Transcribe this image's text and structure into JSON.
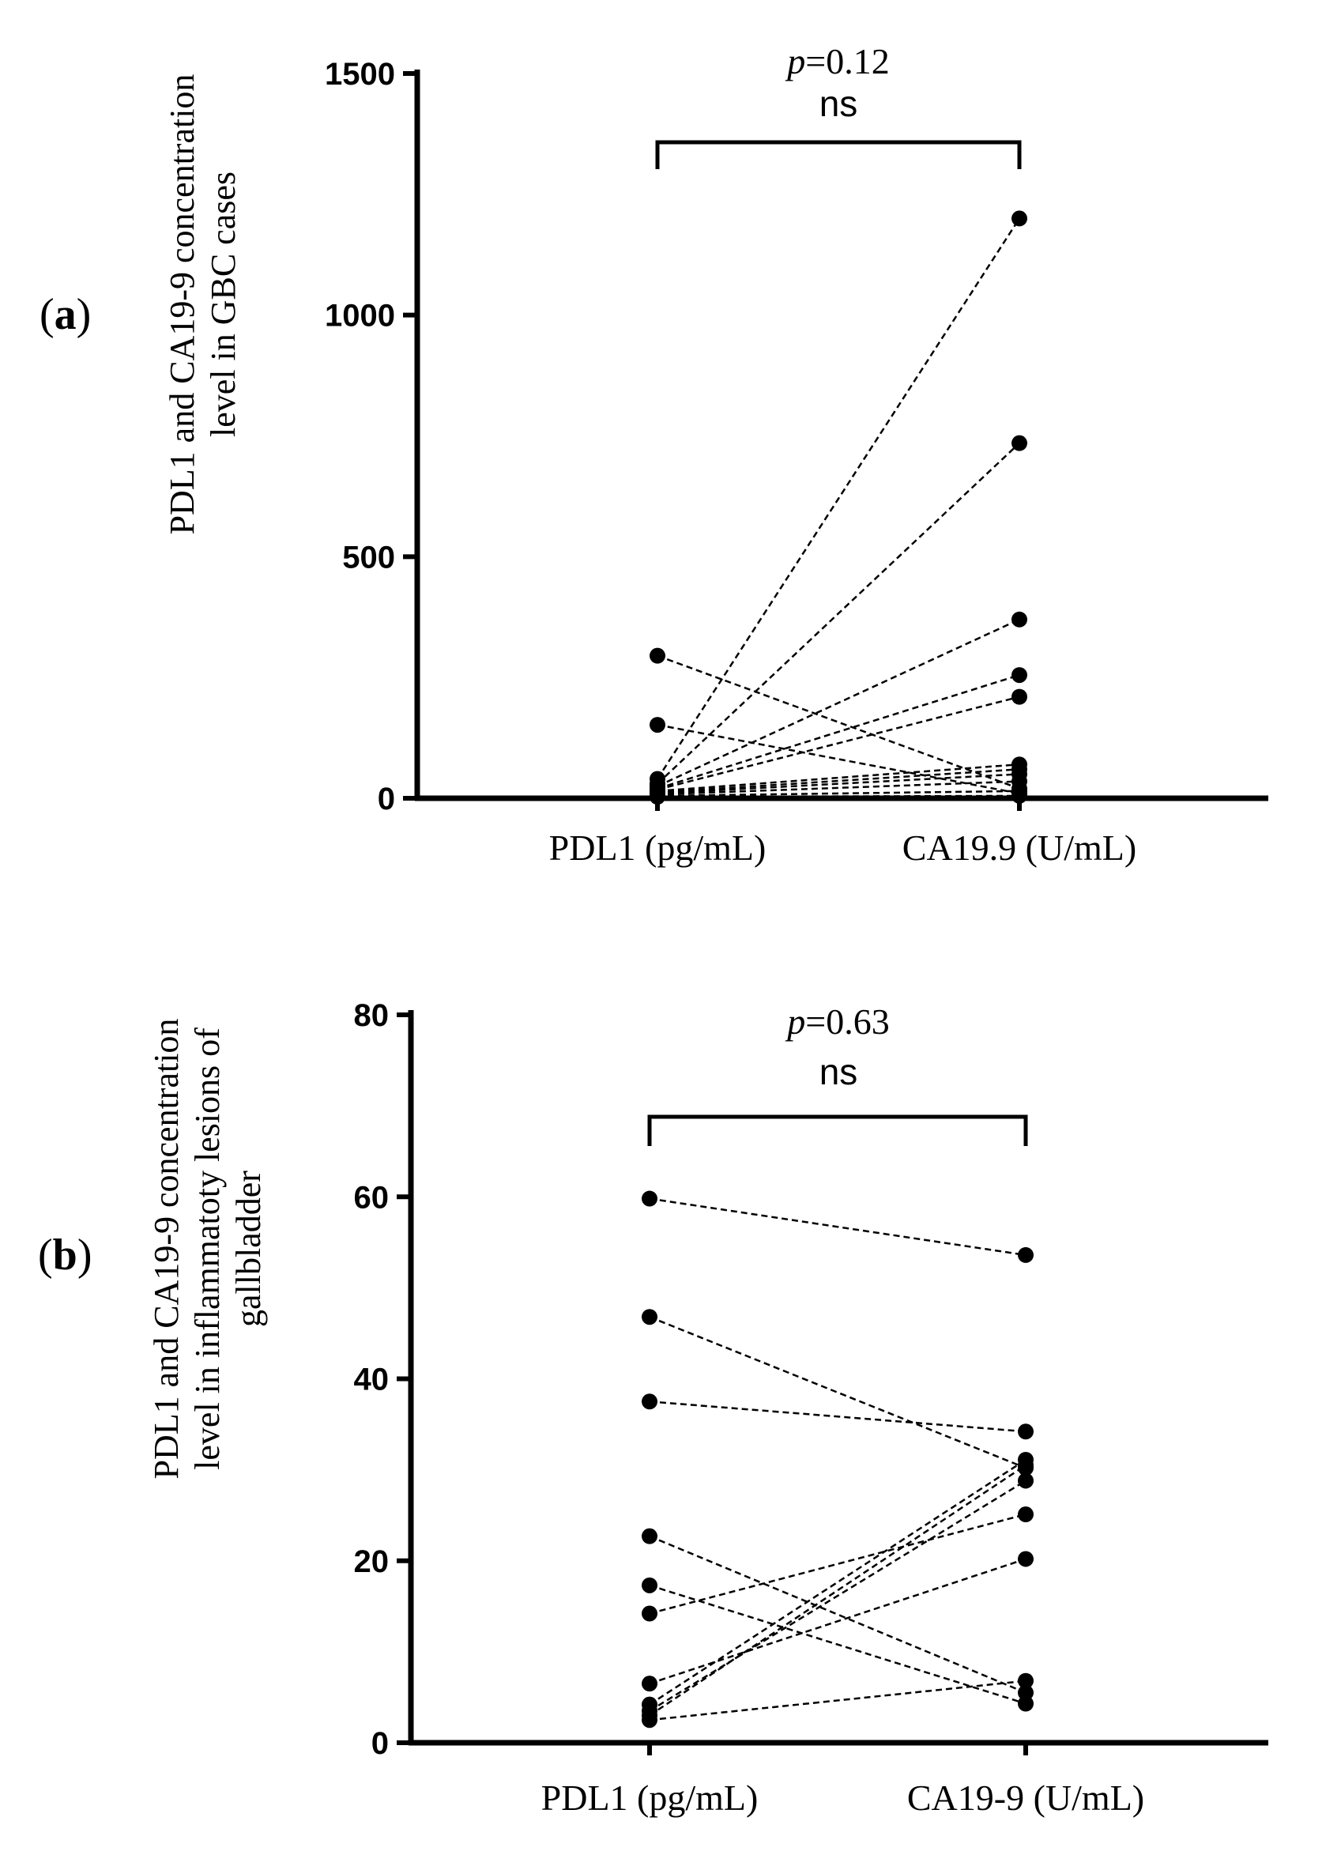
{
  "figure": {
    "panels": [
      {
        "label_paren_open": "(",
        "label_letter": "a",
        "label_paren_close": ")"
      },
      {
        "label_paren_open": "(",
        "label_letter": "b",
        "label_paren_close": ")"
      }
    ]
  },
  "chart_data": [
    {
      "type": "scatter",
      "subtype": "paired-dot-line",
      "panel": "a",
      "title": "",
      "ylabel_lines": [
        "PDL1 and CA19-9 concentration",
        "level in GBC cases"
      ],
      "categories": [
        "PDL1 (pg/mL)",
        "CA19.9 (U/mL)"
      ],
      "ylim": [
        0,
        1500
      ],
      "yticks": [
        0,
        500,
        1000,
        1500
      ],
      "ytick_labels": [
        "0",
        "500",
        "1000",
        "1500"
      ],
      "annotation": {
        "p_symbol": "p",
        "p_value": "=0.12",
        "significance": "ns"
      },
      "pairs": [
        [
          295,
          20
        ],
        [
          152,
          10
        ],
        [
          40,
          1200
        ],
        [
          30,
          735
        ],
        [
          25,
          370
        ],
        [
          20,
          255
        ],
        [
          18,
          210
        ],
        [
          15,
          70
        ],
        [
          12,
          60
        ],
        [
          10,
          50
        ],
        [
          8,
          35
        ],
        [
          5,
          15
        ],
        [
          3,
          5
        ]
      ]
    },
    {
      "type": "scatter",
      "subtype": "paired-dot-line",
      "panel": "b",
      "title": "",
      "ylabel_lines": [
        "PDL1 and CA19-9 concentration",
        "level in inflammatoty lesions of",
        "gallbladder"
      ],
      "categories": [
        "PDL1 (pg/mL)",
        "CA19-9 (U/mL)"
      ],
      "ylim": [
        0,
        80
      ],
      "yticks": [
        0,
        20,
        40,
        60,
        80
      ],
      "ytick_labels": [
        "0",
        "20",
        "40",
        "60",
        "80"
      ],
      "annotation": {
        "p_symbol": "p",
        "p_value": "=0.63",
        "significance": "ns"
      },
      "pairs": [
        [
          59.8,
          53.6
        ],
        [
          46.8,
          30.2
        ],
        [
          37.5,
          34.2
        ],
        [
          22.7,
          5.5
        ],
        [
          17.3,
          4.3
        ],
        [
          14.2,
          25.1
        ],
        [
          6.5,
          20.2
        ],
        [
          4.2,
          31.1
        ],
        [
          3.5,
          28.8
        ],
        [
          3.0,
          30.5
        ],
        [
          2.5,
          6.8
        ]
      ]
    }
  ]
}
